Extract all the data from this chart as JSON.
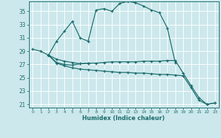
{
  "xlabel": "Humidex (Indice chaleur)",
  "bg_color": "#cce8ec",
  "line_color": "#1a6b6b",
  "grid_color": "#ffffff",
  "xlim": [
    -0.5,
    23.5
  ],
  "ylim": [
    20.5,
    36.5
  ],
  "yticks": [
    21,
    23,
    25,
    27,
    29,
    31,
    33,
    35
  ],
  "xticks": [
    0,
    1,
    2,
    3,
    4,
    5,
    6,
    7,
    8,
    9,
    10,
    11,
    12,
    13,
    14,
    15,
    16,
    17,
    18,
    19,
    20,
    21,
    22,
    23
  ],
  "line1_x": [
    0,
    1,
    2,
    3,
    4,
    5,
    6,
    7,
    8,
    9,
    10,
    11,
    12,
    13,
    14,
    15,
    16,
    17,
    18
  ],
  "line1_y": [
    29.3,
    29.0,
    28.4,
    30.5,
    32.0,
    33.5,
    31.0,
    30.5,
    35.2,
    35.4,
    35.0,
    36.2,
    36.5,
    36.3,
    35.8,
    35.2,
    34.8,
    32.5,
    27.3
  ],
  "line2_x": [
    2,
    3,
    4,
    5,
    6,
    7
  ],
  "line2_y": [
    28.4,
    27.3,
    27.0,
    26.9,
    27.1,
    27.2
  ],
  "line3_x": [
    2,
    3,
    4,
    5,
    6,
    7,
    8,
    9,
    10,
    11,
    12,
    13,
    14,
    15,
    16,
    17,
    18,
    19,
    20,
    21,
    22,
    23
  ],
  "line3_y": [
    28.4,
    27.8,
    27.5,
    27.3,
    27.1,
    27.2,
    27.2,
    27.3,
    27.4,
    27.4,
    27.4,
    27.4,
    27.5,
    27.5,
    27.5,
    27.6,
    27.6,
    25.7,
    23.8,
    22.0,
    21.0,
    21.2
  ],
  "line4_x": [
    2,
    3,
    4,
    5,
    6,
    7,
    8,
    9,
    10,
    11,
    12,
    13,
    14,
    15,
    16,
    17,
    18,
    19,
    20,
    21,
    22,
    23
  ],
  "line4_y": [
    28.4,
    27.2,
    26.8,
    26.5,
    26.3,
    26.2,
    26.1,
    26.0,
    25.9,
    25.8,
    25.8,
    25.7,
    25.7,
    25.6,
    25.5,
    25.5,
    25.4,
    25.3,
    23.5,
    21.6,
    21.0,
    21.2
  ]
}
